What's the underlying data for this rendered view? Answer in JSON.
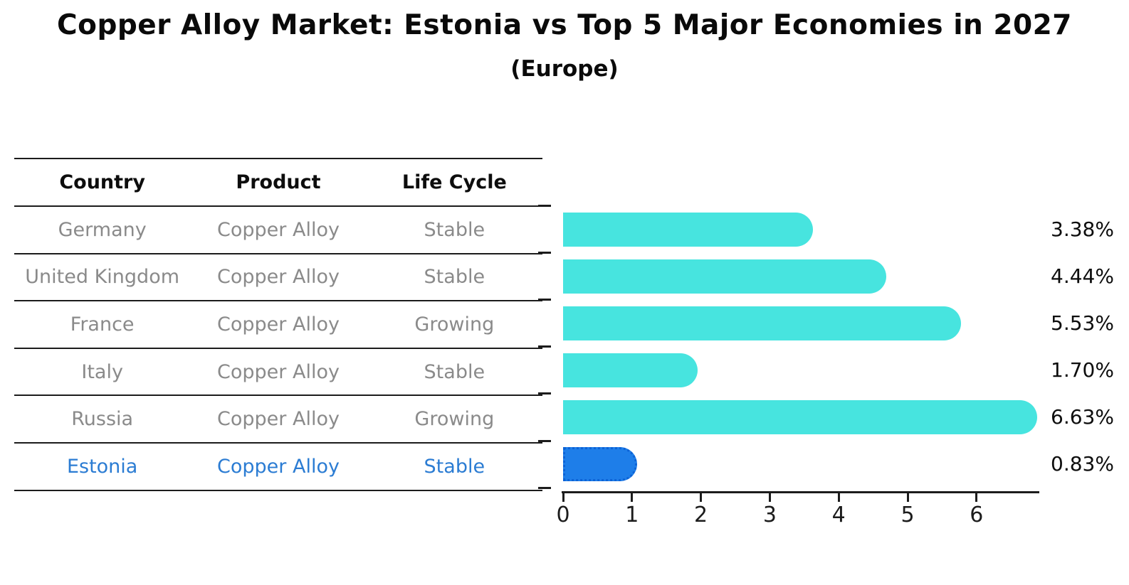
{
  "title": "Copper Alloy Market: Estonia vs Top 5 Major Economies in 2027",
  "subtitle": "(Europe)",
  "colors": {
    "bar": "#47e4df",
    "highlight_bar": "#1e7ee9",
    "highlight_bar_border": "#0d63d6",
    "highlight_text": "#2b7cd3",
    "muted_text": "#8a8a8a",
    "ink": "#1c1c1c"
  },
  "table": {
    "headers": [
      "Country",
      "Product",
      "Life Cycle"
    ],
    "rows": [
      [
        "Germany",
        "Copper Alloy",
        "Stable"
      ],
      [
        "United Kingdom",
        "Copper Alloy",
        "Stable"
      ],
      [
        "France",
        "Copper Alloy",
        "Growing"
      ],
      [
        "Italy",
        "Copper Alloy",
        "Stable"
      ],
      [
        "Russia",
        "Copper Alloy",
        "Growing"
      ],
      [
        "Estonia",
        "Copper Alloy",
        "Stable"
      ]
    ],
    "highlight_row_index": 5
  },
  "chart_data": {
    "type": "bar",
    "orientation": "horizontal",
    "title": "Copper Alloy Market: Estonia vs Top 5 Major Economies in 2027",
    "subtitle": "(Europe)",
    "categories": [
      "Germany",
      "United Kingdom",
      "France",
      "Italy",
      "Russia",
      "Estonia"
    ],
    "values": [
      3.38,
      4.44,
      5.53,
      1.7,
      6.63,
      0.83
    ],
    "value_labels": [
      "3.38%",
      "4.44%",
      "5.53%",
      "1.70%",
      "6.63%",
      "0.83%"
    ],
    "highlight_index": 5,
    "xlabel": "",
    "ylabel": "",
    "xlim": [
      0,
      6.95
    ],
    "xticks": [
      "0",
      "1",
      "2",
      "3",
      "4",
      "5",
      "6"
    ],
    "grid": false,
    "legend": false
  }
}
